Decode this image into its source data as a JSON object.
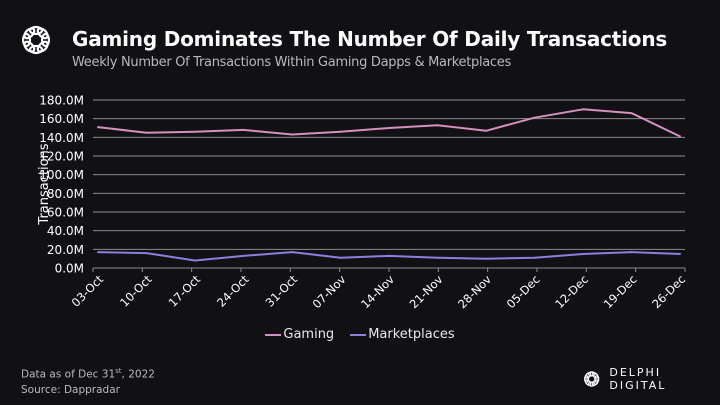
{
  "header": {
    "title": "Gaming Dominates The Number Of Daily Transactions",
    "subtitle": "Weekly Number Of Transactions Within Gaming Dapps & Marketplaces"
  },
  "footer": {
    "data_as_of_prefix": "Data as of Dec 31",
    "data_as_of_suffix": "st",
    "data_as_of_year": ", 2022",
    "source": "Source: Dappradar"
  },
  "brand": {
    "name": "DELPHI DIGITAL",
    "logo_icon": "delphi-knot-icon"
  },
  "colors": {
    "background": "#111114",
    "gaming": "#d68fbf",
    "marketplaces": "#8a7ee0",
    "grid": "#8c8c8c",
    "text": "#ffffff"
  },
  "chart_data": {
    "type": "line",
    "title": "Gaming Dominates The Number Of Daily Transactions",
    "subtitle": "Weekly Number Of Transactions Within Gaming Dapps & Marketplaces",
    "xlabel": "",
    "ylabel": "Transactions",
    "ylim": [
      0,
      180
    ],
    "y_unit": "M",
    "y_ticks": [
      "0.0M",
      "20.0M",
      "40.0M",
      "60.0M",
      "80.0M",
      "100.0M",
      "120.0M",
      "140.0M",
      "160.0M",
      "180.0M"
    ],
    "y_tick_values": [
      0,
      20,
      40,
      60,
      80,
      100,
      120,
      140,
      160,
      180
    ],
    "grid": true,
    "legend_position": "bottom",
    "categories": [
      "03-Oct",
      "10-Oct",
      "17-Oct",
      "24-Oct",
      "31-Oct",
      "07-Nov",
      "14-Nov",
      "21-Nov",
      "28-Nov",
      "05-Dec",
      "12-Dec",
      "19-Dec",
      "26-Dec"
    ],
    "series": [
      {
        "name": "Gaming",
        "color": "#d68fbf",
        "values": [
          151,
          145,
          146,
          148,
          143,
          146,
          150,
          153,
          147,
          161,
          170,
          166,
          141
        ]
      },
      {
        "name": "Marketplaces",
        "color": "#8a7ee0",
        "values": [
          17,
          16,
          8,
          13,
          17,
          11,
          13,
          11,
          10,
          11,
          15,
          17,
          15
        ]
      }
    ]
  }
}
